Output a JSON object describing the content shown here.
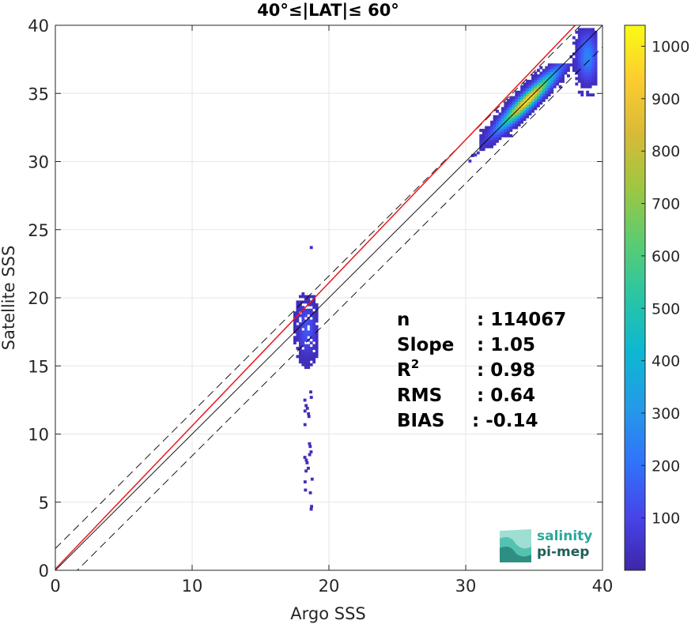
{
  "chart_data": {
    "type": "heatmap",
    "title": "40°≤|LAT|≤ 60°",
    "xlabel": "Argo SSS",
    "ylabel": "Satellite SSS",
    "xlim": [
      0,
      40
    ],
    "ylim": [
      0,
      40
    ],
    "xticks": [
      "0",
      "10",
      "20",
      "30",
      "40"
    ],
    "yticks": [
      "0",
      "5",
      "10",
      "15",
      "20",
      "25",
      "30",
      "35",
      "40"
    ],
    "grid": true,
    "colorbar": {
      "range": [
        0,
        1040
      ],
      "ticks": [
        "100",
        "200",
        "300",
        "400",
        "500",
        "600",
        "700",
        "800",
        "900",
        "1000"
      ]
    },
    "reference_lines": {
      "identity": "black solid y=x",
      "band": "dashed y=x±1.6",
      "fit": "red y=1.05x+0.1"
    },
    "density_clusters": [
      {
        "x_center": 34.5,
        "y_center": 34.3,
        "spread": "31-37.5",
        "peak_count": 1000
      },
      {
        "x_center": 38.8,
        "y_center": 37.5,
        "spread": "37.5-39.5",
        "peak_count": 200
      },
      {
        "x_center": 18.5,
        "y_center": 17.5,
        "spread": "4.5-23.5",
        "peak_count": 120
      }
    ],
    "stats": {
      "rows": [
        {
          "label": "n",
          "value": ": 114067"
        },
        {
          "label": "Slope",
          "value": ": 1.05"
        },
        {
          "label": "R",
          "sup": "2",
          "value": ": 0.98"
        },
        {
          "label": "RMS",
          "value": ": 0.64"
        },
        {
          "label": "BIAS",
          "value": ": -0.14"
        }
      ]
    }
  },
  "logo": {
    "line1": "salinity",
    "line2": "pi-mep"
  }
}
